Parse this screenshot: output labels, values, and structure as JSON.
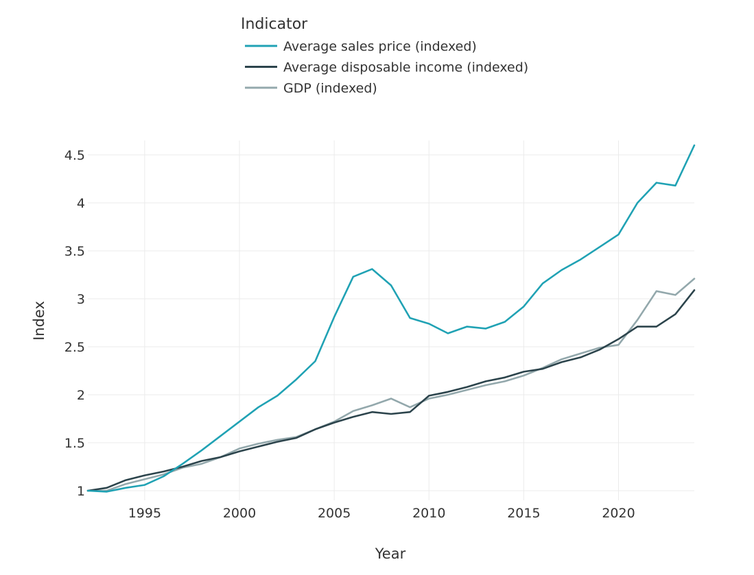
{
  "chart_data": {
    "type": "line",
    "title": "",
    "xlabel": "Year",
    "ylabel": "Index",
    "xlim": [
      1992,
      2024
    ],
    "ylim": [
      0.9,
      4.65
    ],
    "grid": true,
    "legend_title": "Indicator",
    "legend_position": "top-center",
    "x_ticks": [
      1995,
      2000,
      2005,
      2010,
      2015,
      2020
    ],
    "x_tick_labels": [
      "1995",
      "2000",
      "2005",
      "2010",
      "2015",
      "2020"
    ],
    "y_ticks": [
      1,
      1.5,
      2,
      2.5,
      3,
      3.5,
      4,
      4.5
    ],
    "y_tick_labels": [
      "1",
      "1.5",
      "2",
      "2.5",
      "3",
      "3.5",
      "4",
      "4.5"
    ],
    "x": [
      1992,
      1993,
      1994,
      1995,
      1996,
      1997,
      1998,
      1999,
      2000,
      2001,
      2002,
      2003,
      2004,
      2005,
      2006,
      2007,
      2008,
      2009,
      2010,
      2011,
      2012,
      2013,
      2014,
      2015,
      2016,
      2017,
      2018,
      2019,
      2020,
      2021,
      2022,
      2023,
      2024
    ],
    "series": [
      {
        "name": "Average sales price (indexed)",
        "color": "#20a2b4",
        "values": [
          1.0,
          0.99,
          1.03,
          1.06,
          1.15,
          1.28,
          1.42,
          1.57,
          1.72,
          1.87,
          1.99,
          2.16,
          2.35,
          2.81,
          3.23,
          3.31,
          3.14,
          2.8,
          2.74,
          2.64,
          2.71,
          2.69,
          2.76,
          2.92,
          3.16,
          3.3,
          3.41,
          3.54,
          3.67,
          4.0,
          4.21,
          4.18,
          4.6
        ]
      },
      {
        "name": "Average disposable income (indexed)",
        "color": "#2c444c",
        "values": [
          1.0,
          1.03,
          1.11,
          1.16,
          1.2,
          1.25,
          1.31,
          1.35,
          1.41,
          1.46,
          1.51,
          1.55,
          1.64,
          1.71,
          1.77,
          1.82,
          1.8,
          1.82,
          1.99,
          2.03,
          2.08,
          2.14,
          2.18,
          2.24,
          2.27,
          2.34,
          2.39,
          2.47,
          2.58,
          2.71,
          2.71,
          2.84,
          3.09
        ]
      },
      {
        "name": "GDP (indexed)",
        "color": "#93a8ac",
        "values": [
          1.0,
          1.0,
          1.07,
          1.12,
          1.17,
          1.24,
          1.28,
          1.35,
          1.44,
          1.49,
          1.53,
          1.56,
          1.64,
          1.72,
          1.83,
          1.89,
          1.96,
          1.87,
          1.96,
          2.0,
          2.05,
          2.1,
          2.14,
          2.2,
          2.28,
          2.37,
          2.43,
          2.49,
          2.52,
          2.78,
          3.08,
          3.04,
          3.21
        ]
      }
    ]
  }
}
